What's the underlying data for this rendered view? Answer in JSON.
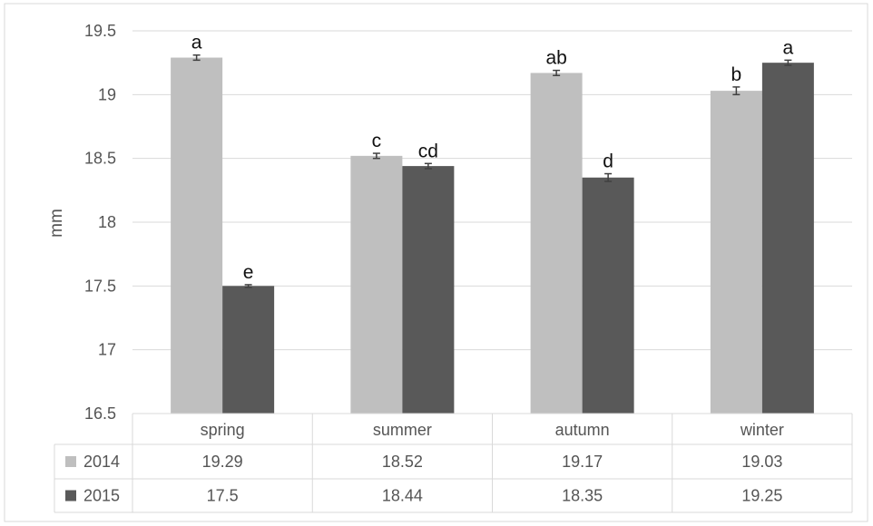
{
  "chart_data": {
    "type": "bar",
    "categories": [
      "spring",
      "summer",
      "autumn",
      "winter"
    ],
    "series": [
      {
        "name": "2014",
        "color": "#bfbfbf",
        "values": [
          19.29,
          18.52,
          19.17,
          19.03
        ],
        "errors": [
          0.02,
          0.02,
          0.02,
          0.03
        ],
        "labels": [
          "a",
          "c",
          "ab",
          "b"
        ]
      },
      {
        "name": "2015",
        "color": "#595959",
        "values": [
          17.5,
          18.44,
          18.35,
          19.25
        ],
        "errors": [
          0.01,
          0.02,
          0.03,
          0.02
        ],
        "labels": [
          "e",
          "cd",
          "d",
          "a"
        ]
      }
    ],
    "title": "",
    "xlabel": "",
    "ylabel": "mm",
    "ylim": [
      16.5,
      19.5
    ],
    "yticks": [
      "16.5",
      "17",
      "17.5",
      "18",
      "18.5",
      "19",
      "19.5"
    ],
    "grid": true,
    "data_table": true
  }
}
